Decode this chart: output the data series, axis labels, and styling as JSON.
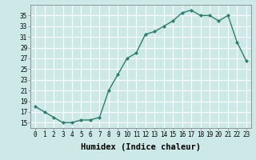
{
  "x": [
    0,
    1,
    2,
    3,
    4,
    5,
    6,
    7,
    8,
    9,
    10,
    11,
    12,
    13,
    14,
    15,
    16,
    17,
    18,
    19,
    20,
    21,
    22,
    23
  ],
  "y": [
    18,
    17,
    16,
    15,
    15,
    15.5,
    15.5,
    16,
    21,
    24,
    27,
    28,
    31.5,
    32,
    33,
    34,
    35.5,
    36,
    35,
    35,
    34,
    35,
    30,
    26.5
  ],
  "line_color": "#2e7d6e",
  "marker": "D",
  "marker_size": 2.0,
  "bg_color": "#cde9e7",
  "grid_color": "#ffffff",
  "xlabel": "Humidex (Indice chaleur)",
  "xlabel_fontsize": 7.5,
  "ylabel_ticks": [
    15,
    17,
    19,
    21,
    23,
    25,
    27,
    29,
    31,
    33,
    35
  ],
  "ylim": [
    14.0,
    37.0
  ],
  "xlim": [
    -0.5,
    23.5
  ],
  "xticks": [
    0,
    1,
    2,
    3,
    4,
    5,
    6,
    7,
    8,
    9,
    10,
    11,
    12,
    13,
    14,
    15,
    16,
    17,
    18,
    19,
    20,
    21,
    22,
    23
  ],
  "tick_fontsize": 5.5,
  "line_width": 1.0
}
